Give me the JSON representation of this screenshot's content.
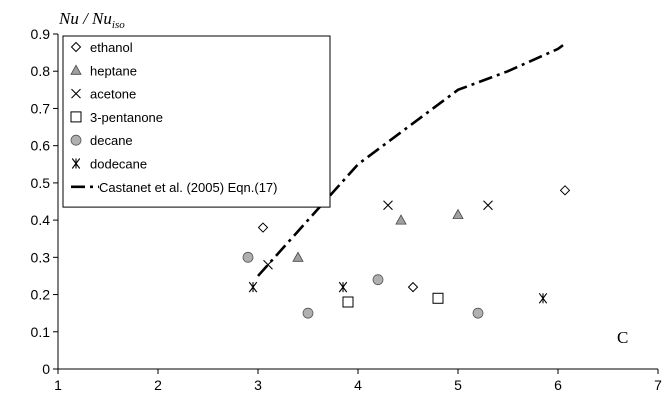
{
  "chart_data": {
    "type": "scatter",
    "ylabel_main": "Nu / Nu",
    "ylabel_sub": "iso",
    "xlabel": "",
    "xlim": [
      1,
      7
    ],
    "ylim": [
      0,
      0.9
    ],
    "xticks": [
      "1",
      "2",
      "3",
      "4",
      "5",
      "6",
      "7"
    ],
    "yticks": [
      "0",
      "0.1",
      "0.2",
      "0.3",
      "0.4",
      "0.5",
      "0.6",
      "0.7",
      "0.8",
      "0.9"
    ],
    "grid": false,
    "legend_position": "top-left",
    "annotation": "C",
    "series": [
      {
        "name": "ethanol",
        "marker": "diamond",
        "color": "#ffffff",
        "points": [
          [
            3.05,
            0.38
          ],
          [
            4.55,
            0.22
          ],
          [
            6.07,
            0.48
          ]
        ]
      },
      {
        "name": "heptane",
        "marker": "triangle",
        "color": "#a0a0a0",
        "points": [
          [
            3.4,
            0.3
          ],
          [
            4.43,
            0.4
          ],
          [
            5.0,
            0.415
          ]
        ]
      },
      {
        "name": "acetone",
        "marker": "x",
        "color": "#000000",
        "points": [
          [
            3.1,
            0.28
          ],
          [
            4.3,
            0.44
          ],
          [
            5.3,
            0.44
          ]
        ]
      },
      {
        "name": "3-pentanone",
        "marker": "square",
        "color": "#ffffff",
        "points": [
          [
            3.9,
            0.18
          ],
          [
            4.8,
            0.19
          ]
        ]
      },
      {
        "name": "decane",
        "marker": "circle",
        "color": "#b0b0b0",
        "points": [
          [
            2.9,
            0.3
          ],
          [
            3.5,
            0.15
          ],
          [
            4.2,
            0.24
          ],
          [
            5.2,
            0.15
          ]
        ]
      },
      {
        "name": "dodecane",
        "marker": "asterisk",
        "color": "#000000",
        "points": [
          [
            2.95,
            0.22
          ],
          [
            3.85,
            0.22
          ],
          [
            5.85,
            0.19
          ]
        ]
      },
      {
        "name": "Castanet et al. (2005) Eqn.(17)",
        "marker": "dashdot-line",
        "color": "#000000",
        "points": [
          [
            3.0,
            0.25
          ],
          [
            3.5,
            0.4
          ],
          [
            4.0,
            0.55
          ],
          [
            4.5,
            0.65
          ],
          [
            5.0,
            0.75
          ],
          [
            5.5,
            0.8
          ],
          [
            6.0,
            0.86
          ],
          [
            6.05,
            0.87
          ]
        ]
      }
    ]
  }
}
